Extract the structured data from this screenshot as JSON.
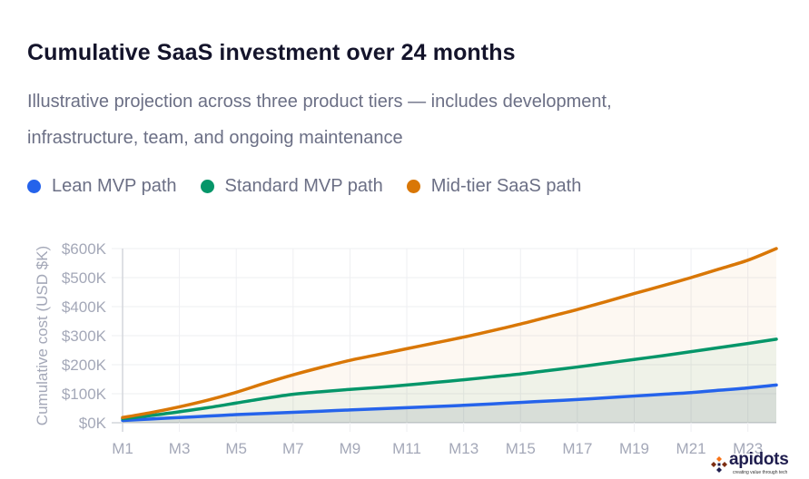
{
  "header": {
    "title": "Cumulative SaaS investment over 24 months",
    "subtitle": "Illustrative projection across three product tiers — includes development, infrastructure, team, and ongoing maintenance"
  },
  "legend": [
    {
      "label": "Lean MVP path",
      "color": "#2563eb"
    },
    {
      "label": "Standard MVP path",
      "color": "#059669"
    },
    {
      "label": "Mid-tier SaaS path",
      "color": "#d97706"
    }
  ],
  "branding": {
    "logo_text": "apidots",
    "tagline": "creating value through tech"
  },
  "chart_data": {
    "type": "area",
    "title": "Cumulative SaaS investment over 24 months",
    "subtitle": "Illustrative projection across three product tiers — includes development, infrastructure, team, and ongoing maintenance",
    "xlabel": "",
    "ylabel": "Cumulative cost (USD $K)",
    "ylim": [
      0,
      600
    ],
    "yticks": [
      0,
      100,
      200,
      300,
      400,
      500,
      600
    ],
    "ytick_labels": [
      "$0K",
      "$100K",
      "$200K",
      "$300K",
      "$400K",
      "$500K",
      "$600K"
    ],
    "x": [
      "M1",
      "M2",
      "M3",
      "M4",
      "M5",
      "M6",
      "M7",
      "M8",
      "M9",
      "M10",
      "M11",
      "M12",
      "M13",
      "M14",
      "M15",
      "M16",
      "M17",
      "M18",
      "M19",
      "M20",
      "M21",
      "M22",
      "M23",
      "M24"
    ],
    "xtick_labels": [
      "M1",
      "M3",
      "M5",
      "M7",
      "M9",
      "M11",
      "M13",
      "M15",
      "M17",
      "M19",
      "M21",
      "M23"
    ],
    "grid": true,
    "legend_position": "top-left",
    "series": [
      {
        "name": "Lean MVP path",
        "color": "#2563eb",
        "values": [
          8,
          13,
          18,
          23,
          28,
          32,
          36,
          40,
          44,
          48,
          52,
          56,
          60,
          65,
          70,
          75,
          80,
          86,
          92,
          98,
          104,
          112,
          120,
          130
        ]
      },
      {
        "name": "Standard MVP path",
        "color": "#059669",
        "values": [
          14,
          25,
          38,
          52,
          68,
          84,
          98,
          107,
          115,
          122,
          130,
          139,
          148,
          158,
          168,
          180,
          192,
          205,
          218,
          231,
          245,
          259,
          273,
          288
        ]
      },
      {
        "name": "Mid-tier SaaS path",
        "color": "#d97706",
        "values": [
          18,
          35,
          55,
          78,
          105,
          136,
          165,
          191,
          215,
          235,
          255,
          275,
          295,
          317,
          340,
          365,
          390,
          417,
          445,
          472,
          500,
          530,
          560,
          600
        ]
      }
    ]
  }
}
